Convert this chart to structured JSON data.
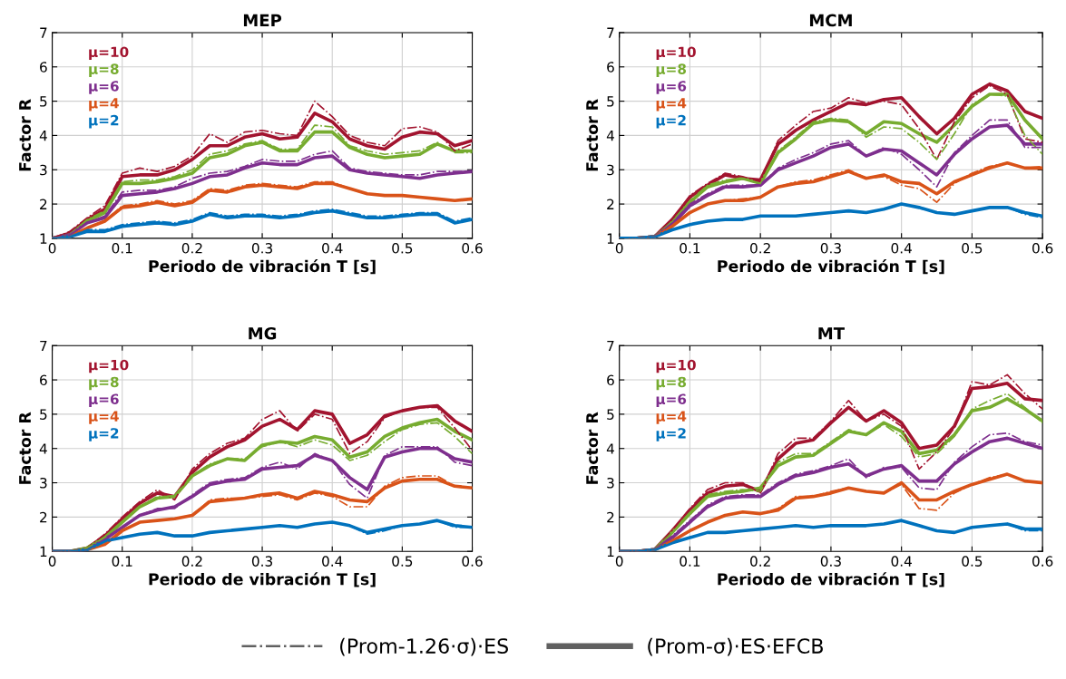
{
  "chart_data": [
    {
      "type": "line",
      "title": "MEP",
      "xlabel": "Periodo de vibración T [s]",
      "ylabel": "Factor R",
      "x": [
        0,
        0.025,
        0.05,
        0.075,
        0.1,
        0.125,
        0.15,
        0.175,
        0.2,
        0.225,
        0.25,
        0.275,
        0.3,
        0.325,
        0.35,
        0.375,
        0.4,
        0.425,
        0.45,
        0.475,
        0.5,
        0.525,
        0.55,
        0.575,
        0.6
      ],
      "xlim": [
        0,
        0.6
      ],
      "xticks": [
        0,
        0.1,
        0.2,
        0.3,
        0.4,
        0.5,
        0.6
      ],
      "ylim": [
        1,
        7
      ],
      "yticks": [
        1,
        2,
        3,
        4,
        5,
        6,
        7
      ],
      "grid": true,
      "series": [
        {
          "name": "μ=10",
          "color": "#a2142f",
          "line_style": "solid",
          "values": [
            1.0,
            1.15,
            1.55,
            1.85,
            2.8,
            2.85,
            2.85,
            3.0,
            3.3,
            3.7,
            3.7,
            3.95,
            4.05,
            3.9,
            3.95,
            4.65,
            4.4,
            3.9,
            3.7,
            3.6,
            3.95,
            4.1,
            4.05,
            3.7,
            3.85
          ]
        },
        {
          "color": "#a2142f",
          "line_style": "dashdot",
          "values": [
            1.0,
            1.2,
            1.6,
            1.95,
            2.9,
            3.05,
            2.95,
            3.1,
            3.4,
            4.05,
            3.8,
            4.1,
            4.15,
            4.05,
            4.0,
            5.0,
            4.55,
            4.0,
            3.8,
            3.7,
            4.2,
            4.25,
            4.1,
            3.55,
            3.75
          ]
        },
        {
          "name": "μ=8",
          "color": "#77ac30",
          "line_style": "solid",
          "values": [
            1.0,
            1.1,
            1.5,
            1.75,
            2.6,
            2.6,
            2.65,
            2.75,
            2.9,
            3.35,
            3.45,
            3.7,
            3.8,
            3.55,
            3.55,
            4.1,
            4.1,
            3.65,
            3.45,
            3.35,
            3.4,
            3.45,
            3.75,
            3.55,
            3.55
          ]
        },
        {
          "color": "#77ac30",
          "line_style": "dashdot",
          "values": [
            1.0,
            1.1,
            1.55,
            1.8,
            2.65,
            2.7,
            2.7,
            2.8,
            3.0,
            3.45,
            3.55,
            3.75,
            3.85,
            3.6,
            3.6,
            4.3,
            4.25,
            3.7,
            3.55,
            3.45,
            3.5,
            3.55,
            3.8,
            3.5,
            3.5
          ]
        },
        {
          "name": "μ=6",
          "color": "#7e2f8e",
          "line_style": "solid",
          "values": [
            1.0,
            1.1,
            1.45,
            1.6,
            2.25,
            2.3,
            2.35,
            2.45,
            2.6,
            2.8,
            2.85,
            3.05,
            3.2,
            3.15,
            3.15,
            3.35,
            3.4,
            3.0,
            2.9,
            2.85,
            2.8,
            2.75,
            2.85,
            2.9,
            2.95
          ]
        },
        {
          "color": "#7e2f8e",
          "line_style": "dashdot",
          "values": [
            1.0,
            1.1,
            1.45,
            1.65,
            2.35,
            2.4,
            2.4,
            2.5,
            2.75,
            2.9,
            2.95,
            3.1,
            3.3,
            3.25,
            3.25,
            3.45,
            3.55,
            3.05,
            2.95,
            2.9,
            2.85,
            2.85,
            2.95,
            2.95,
            2.95
          ]
        },
        {
          "name": "μ=4",
          "color": "#d95319",
          "line_style": "solid",
          "values": [
            1.0,
            1.05,
            1.3,
            1.5,
            1.9,
            1.95,
            2.05,
            1.95,
            2.05,
            2.4,
            2.35,
            2.5,
            2.55,
            2.5,
            2.45,
            2.6,
            2.6,
            2.45,
            2.3,
            2.25,
            2.25,
            2.2,
            2.15,
            2.1,
            2.15
          ]
        },
        {
          "color": "#d95319",
          "line_style": "dashdot",
          "values": [
            1.0,
            1.05,
            1.3,
            1.5,
            1.95,
            2.0,
            2.1,
            2.0,
            2.1,
            2.45,
            2.4,
            2.55,
            2.6,
            2.55,
            2.5,
            2.65,
            2.65,
            2.45,
            2.3,
            2.25,
            2.25,
            2.2,
            2.15,
            2.1,
            2.15
          ]
        },
        {
          "name": "μ=2",
          "color": "#0072bd",
          "line_style": "solid",
          "values": [
            1.0,
            1.05,
            1.2,
            1.2,
            1.35,
            1.4,
            1.45,
            1.4,
            1.5,
            1.7,
            1.6,
            1.65,
            1.65,
            1.6,
            1.65,
            1.75,
            1.8,
            1.7,
            1.6,
            1.6,
            1.65,
            1.7,
            1.7,
            1.45,
            1.55
          ]
        },
        {
          "color": "#0072bd",
          "line_style": "dashdot",
          "values": [
            1.0,
            1.05,
            1.25,
            1.25,
            1.4,
            1.45,
            1.5,
            1.45,
            1.55,
            1.75,
            1.65,
            1.7,
            1.7,
            1.65,
            1.7,
            1.8,
            1.85,
            1.75,
            1.65,
            1.65,
            1.7,
            1.75,
            1.75,
            1.5,
            1.6
          ]
        }
      ]
    },
    {
      "type": "line",
      "title": "MCM",
      "xlabel": "Periodo de vibración T [s]",
      "ylabel": "Factor R",
      "x": [
        0,
        0.025,
        0.05,
        0.075,
        0.1,
        0.125,
        0.15,
        0.175,
        0.2,
        0.225,
        0.25,
        0.275,
        0.3,
        0.325,
        0.35,
        0.375,
        0.4,
        0.425,
        0.45,
        0.475,
        0.5,
        0.525,
        0.55,
        0.575,
        0.6
      ],
      "xlim": [
        0,
        0.6
      ],
      "xticks": [
        0,
        0.1,
        0.2,
        0.3,
        0.4,
        0.5,
        0.6
      ],
      "ylim": [
        1,
        7
      ],
      "yticks": [
        1,
        2,
        3,
        4,
        5,
        6,
        7
      ],
      "grid": true,
      "series": [
        {
          "name": "μ=10",
          "color": "#a2142f",
          "line_style": "solid",
          "values": [
            1.0,
            1.0,
            1.05,
            1.55,
            2.2,
            2.55,
            2.85,
            2.75,
            2.7,
            3.75,
            4.15,
            4.45,
            4.7,
            4.95,
            4.9,
            5.05,
            5.1,
            4.55,
            4.05,
            4.5,
            5.2,
            5.5,
            5.3,
            4.7,
            4.5
          ]
        },
        {
          "color": "#a2142f",
          "line_style": "dashdot",
          "values": [
            1.0,
            1.0,
            1.05,
            1.55,
            2.25,
            2.6,
            2.9,
            2.8,
            2.65,
            3.85,
            4.3,
            4.7,
            4.8,
            5.1,
            4.95,
            5.0,
            4.9,
            4.2,
            3.3,
            4.4,
            5.1,
            5.45,
            5.2,
            3.9,
            3.8
          ]
        },
        {
          "name": "μ=8",
          "color": "#77ac30",
          "line_style": "solid",
          "values": [
            1.0,
            1.0,
            1.05,
            1.45,
            2.05,
            2.5,
            2.65,
            2.75,
            2.6,
            3.5,
            3.9,
            4.35,
            4.45,
            4.4,
            4.05,
            4.4,
            4.35,
            4.05,
            3.8,
            4.3,
            4.85,
            5.2,
            5.2,
            4.45,
            3.9
          ]
        },
        {
          "color": "#77ac30",
          "line_style": "dashdot",
          "values": [
            1.0,
            1.0,
            1.05,
            1.5,
            2.1,
            2.55,
            2.7,
            2.75,
            2.6,
            3.55,
            3.95,
            4.4,
            4.5,
            4.45,
            3.95,
            4.25,
            4.2,
            3.8,
            3.3,
            4.05,
            4.9,
            5.2,
            5.15,
            4.0,
            3.45
          ]
        },
        {
          "name": "μ=6",
          "color": "#7e2f8e",
          "line_style": "solid",
          "values": [
            1.0,
            1.0,
            1.05,
            1.4,
            1.95,
            2.25,
            2.5,
            2.5,
            2.55,
            3.0,
            3.2,
            3.4,
            3.65,
            3.75,
            3.4,
            3.6,
            3.55,
            3.2,
            2.85,
            3.45,
            3.9,
            4.25,
            4.3,
            3.75,
            3.75
          ]
        },
        {
          "color": "#7e2f8e",
          "line_style": "dashdot",
          "values": [
            1.0,
            1.0,
            1.05,
            1.45,
            2.0,
            2.3,
            2.55,
            2.55,
            2.55,
            3.05,
            3.3,
            3.5,
            3.75,
            3.85,
            3.4,
            3.65,
            3.45,
            3.0,
            2.5,
            3.5,
            4.0,
            4.45,
            4.45,
            3.65,
            3.65
          ]
        },
        {
          "name": "μ=4",
          "color": "#d95319",
          "line_style": "solid",
          "values": [
            1.0,
            1.0,
            1.05,
            1.35,
            1.75,
            2.0,
            2.1,
            2.1,
            2.2,
            2.5,
            2.6,
            2.65,
            2.8,
            2.95,
            2.75,
            2.85,
            2.65,
            2.6,
            2.3,
            2.65,
            2.85,
            3.05,
            3.2,
            3.05,
            3.05
          ]
        },
        {
          "color": "#d95319",
          "line_style": "dashdot",
          "values": [
            1.0,
            1.0,
            1.05,
            1.35,
            1.75,
            2.0,
            2.1,
            2.15,
            2.2,
            2.5,
            2.65,
            2.7,
            2.85,
            3.0,
            2.75,
            2.8,
            2.55,
            2.45,
            2.05,
            2.6,
            2.9,
            3.1,
            3.2,
            3.05,
            3.1
          ]
        },
        {
          "name": "μ=2",
          "color": "#0072bd",
          "line_style": "solid",
          "values": [
            1.0,
            1.0,
            1.05,
            1.25,
            1.4,
            1.5,
            1.55,
            1.55,
            1.65,
            1.65,
            1.65,
            1.7,
            1.75,
            1.8,
            1.75,
            1.85,
            2.0,
            1.9,
            1.75,
            1.7,
            1.8,
            1.9,
            1.9,
            1.75,
            1.65
          ]
        },
        {
          "color": "#0072bd",
          "line_style": "dashdot",
          "values": [
            1.0,
            1.0,
            1.05,
            1.25,
            1.4,
            1.5,
            1.55,
            1.55,
            1.65,
            1.65,
            1.65,
            1.7,
            1.75,
            1.8,
            1.75,
            1.85,
            2.0,
            1.9,
            1.75,
            1.7,
            1.8,
            1.9,
            1.9,
            1.7,
            1.6
          ]
        }
      ]
    },
    {
      "type": "line",
      "title": "MG",
      "xlabel": "Periodo de vibración T [s]",
      "ylabel": "Factor R",
      "x": [
        0,
        0.025,
        0.05,
        0.075,
        0.1,
        0.125,
        0.15,
        0.175,
        0.2,
        0.225,
        0.25,
        0.275,
        0.3,
        0.325,
        0.35,
        0.375,
        0.4,
        0.425,
        0.45,
        0.475,
        0.5,
        0.525,
        0.55,
        0.575,
        0.6
      ],
      "xlim": [
        0,
        0.6
      ],
      "xticks": [
        0,
        0.1,
        0.2,
        0.3,
        0.4,
        0.5,
        0.6
      ],
      "ylim": [
        1,
        7
      ],
      "yticks": [
        1,
        2,
        3,
        4,
        5,
        6,
        7
      ],
      "grid": true,
      "series": [
        {
          "name": "μ=10",
          "color": "#a2142f",
          "line_style": "solid",
          "values": [
            1.0,
            1.0,
            1.1,
            1.45,
            1.95,
            2.4,
            2.7,
            2.6,
            3.3,
            3.75,
            4.05,
            4.25,
            4.65,
            4.85,
            4.55,
            5.1,
            5.0,
            4.15,
            4.4,
            4.95,
            5.1,
            5.2,
            5.25,
            4.8,
            4.5
          ]
        },
        {
          "color": "#a2142f",
          "line_style": "dashdot",
          "values": [
            1.0,
            1.0,
            1.1,
            1.5,
            2.0,
            2.45,
            2.8,
            2.5,
            3.4,
            3.85,
            4.15,
            4.3,
            4.85,
            5.1,
            4.5,
            5.0,
            4.85,
            3.85,
            4.2,
            4.9,
            5.1,
            5.2,
            5.2,
            4.6,
            3.95
          ]
        },
        {
          "name": "μ=8",
          "color": "#77ac30",
          "line_style": "solid",
          "values": [
            1.0,
            1.0,
            1.1,
            1.4,
            1.85,
            2.3,
            2.55,
            2.6,
            3.2,
            3.5,
            3.7,
            3.65,
            4.1,
            4.2,
            4.15,
            4.35,
            4.25,
            3.75,
            3.9,
            4.35,
            4.6,
            4.75,
            4.85,
            4.5,
            4.25
          ]
        },
        {
          "color": "#77ac30",
          "line_style": "dashdot",
          "values": [
            1.0,
            1.0,
            1.1,
            1.4,
            1.85,
            2.3,
            2.6,
            2.6,
            3.2,
            3.55,
            3.7,
            3.7,
            4.05,
            4.2,
            4.05,
            4.25,
            4.1,
            3.65,
            3.8,
            4.2,
            4.55,
            4.7,
            4.75,
            4.35,
            3.85
          ]
        },
        {
          "name": "μ=6",
          "color": "#7e2f8e",
          "line_style": "solid",
          "values": [
            1.0,
            1.0,
            1.05,
            1.35,
            1.7,
            2.05,
            2.2,
            2.3,
            2.6,
            2.95,
            3.05,
            3.1,
            3.4,
            3.45,
            3.5,
            3.8,
            3.65,
            3.15,
            2.8,
            3.75,
            3.9,
            4.0,
            4.0,
            3.7,
            3.6
          ]
        },
        {
          "color": "#7e2f8e",
          "line_style": "dashdot",
          "values": [
            1.0,
            1.0,
            1.05,
            1.35,
            1.7,
            2.05,
            2.25,
            2.25,
            2.65,
            3.0,
            3.1,
            3.15,
            3.45,
            3.6,
            3.4,
            3.85,
            3.65,
            2.95,
            2.55,
            3.8,
            4.05,
            4.05,
            4.05,
            3.6,
            3.5
          ]
        },
        {
          "name": "μ=4",
          "color": "#d95319",
          "line_style": "solid",
          "values": [
            1.0,
            1.0,
            1.05,
            1.2,
            1.6,
            1.85,
            1.9,
            1.95,
            2.05,
            2.45,
            2.5,
            2.55,
            2.65,
            2.7,
            2.55,
            2.75,
            2.65,
            2.5,
            2.45,
            2.85,
            3.05,
            3.1,
            3.1,
            2.9,
            2.85
          ]
        },
        {
          "color": "#d95319",
          "line_style": "dashdot",
          "values": [
            1.0,
            1.0,
            1.05,
            1.2,
            1.6,
            1.85,
            1.9,
            1.95,
            2.05,
            2.5,
            2.55,
            2.55,
            2.6,
            2.65,
            2.5,
            2.7,
            2.6,
            2.3,
            2.3,
            2.9,
            3.15,
            3.2,
            3.2,
            2.9,
            2.85
          ]
        },
        {
          "name": "μ=2",
          "color": "#0072bd",
          "line_style": "solid",
          "values": [
            1.0,
            1.0,
            1.05,
            1.3,
            1.4,
            1.5,
            1.55,
            1.45,
            1.45,
            1.55,
            1.6,
            1.65,
            1.7,
            1.75,
            1.7,
            1.8,
            1.85,
            1.75,
            1.55,
            1.65,
            1.75,
            1.8,
            1.9,
            1.75,
            1.7
          ]
        },
        {
          "color": "#0072bd",
          "line_style": "dashdot",
          "values": [
            1.0,
            1.0,
            1.05,
            1.3,
            1.4,
            1.5,
            1.55,
            1.45,
            1.45,
            1.55,
            1.6,
            1.65,
            1.7,
            1.75,
            1.7,
            1.8,
            1.85,
            1.75,
            1.5,
            1.6,
            1.75,
            1.8,
            1.9,
            1.7,
            1.7
          ]
        }
      ]
    },
    {
      "type": "line",
      "title": "MT",
      "xlabel": "Periodo de vibración T [s]",
      "ylabel": "Factor R",
      "x": [
        0,
        0.025,
        0.05,
        0.075,
        0.1,
        0.125,
        0.15,
        0.175,
        0.2,
        0.225,
        0.25,
        0.275,
        0.3,
        0.325,
        0.35,
        0.375,
        0.4,
        0.425,
        0.45,
        0.475,
        0.5,
        0.525,
        0.55,
        0.575,
        0.6
      ],
      "xlim": [
        0,
        0.6
      ],
      "xticks": [
        0,
        0.1,
        0.2,
        0.3,
        0.4,
        0.5,
        0.6
      ],
      "ylim": [
        1,
        7
      ],
      "yticks": [
        1,
        2,
        3,
        4,
        5,
        6,
        7
      ],
      "grid": true,
      "annotations": [
        "(Prom-1.26·σ)·ES",
        "(Prom-σ)·ES·EFCB"
      ],
      "series": [
        {
          "name": "μ=10",
          "color": "#a2142f",
          "line_style": "solid",
          "values": [
            1.0,
            1.0,
            1.05,
            1.6,
            2.2,
            2.7,
            2.9,
            2.95,
            2.75,
            3.7,
            4.15,
            4.25,
            4.75,
            5.2,
            4.8,
            5.1,
            4.75,
            4.0,
            4.1,
            4.65,
            5.75,
            5.8,
            5.9,
            5.45,
            5.4
          ]
        },
        {
          "color": "#a2142f",
          "line_style": "dashdot",
          "values": [
            1.0,
            1.0,
            1.05,
            1.6,
            2.25,
            2.8,
            3.0,
            3.0,
            2.7,
            3.85,
            4.3,
            4.3,
            4.8,
            5.4,
            4.8,
            5.0,
            4.65,
            3.4,
            3.9,
            4.6,
            5.95,
            5.85,
            6.15,
            5.6,
            5.15
          ]
        },
        {
          "name": "μ=8",
          "color": "#77ac30",
          "line_style": "solid",
          "values": [
            1.0,
            1.0,
            1.05,
            1.55,
            2.1,
            2.6,
            2.7,
            2.75,
            2.85,
            3.5,
            3.75,
            3.8,
            4.15,
            4.5,
            4.4,
            4.75,
            4.5,
            3.85,
            3.95,
            4.4,
            5.1,
            5.2,
            5.45,
            5.15,
            4.8
          ]
        },
        {
          "color": "#77ac30",
          "line_style": "dashdot",
          "values": [
            1.0,
            1.0,
            1.05,
            1.55,
            2.1,
            2.65,
            2.75,
            2.8,
            2.75,
            3.6,
            3.85,
            3.85,
            4.2,
            4.55,
            4.4,
            4.7,
            4.35,
            3.75,
            3.85,
            4.35,
            5.15,
            5.4,
            5.6,
            5.2,
            4.75
          ]
        },
        {
          "name": "μ=6",
          "color": "#7e2f8e",
          "line_style": "solid",
          "values": [
            1.0,
            1.0,
            1.05,
            1.4,
            1.85,
            2.3,
            2.55,
            2.6,
            2.6,
            2.95,
            3.2,
            3.3,
            3.45,
            3.55,
            3.2,
            3.4,
            3.5,
            3.05,
            3.05,
            3.55,
            3.9,
            4.2,
            4.3,
            4.15,
            4.0
          ]
        },
        {
          "color": "#7e2f8e",
          "line_style": "dashdot",
          "values": [
            1.0,
            1.0,
            1.05,
            1.45,
            1.9,
            2.35,
            2.6,
            2.65,
            2.65,
            3.0,
            3.25,
            3.35,
            3.5,
            3.7,
            3.15,
            3.45,
            3.45,
            2.85,
            2.8,
            3.6,
            4.05,
            4.4,
            4.45,
            4.2,
            4.1
          ]
        },
        {
          "name": "μ=4",
          "color": "#d95319",
          "line_style": "solid",
          "values": [
            1.0,
            1.0,
            1.05,
            1.3,
            1.6,
            1.85,
            2.05,
            2.15,
            2.1,
            2.2,
            2.55,
            2.6,
            2.7,
            2.85,
            2.75,
            2.7,
            3.0,
            2.5,
            2.5,
            2.75,
            2.95,
            3.1,
            3.25,
            3.05,
            3.0
          ]
        },
        {
          "color": "#d95319",
          "line_style": "dashdot",
          "values": [
            1.0,
            1.0,
            1.05,
            1.3,
            1.6,
            1.85,
            2.05,
            2.15,
            2.1,
            2.25,
            2.6,
            2.6,
            2.75,
            2.85,
            2.75,
            2.7,
            2.95,
            2.25,
            2.2,
            2.7,
            2.95,
            3.15,
            3.25,
            3.05,
            3.0
          ]
        },
        {
          "name": "μ=2",
          "color": "#0072bd",
          "line_style": "solid",
          "values": [
            1.0,
            1.0,
            1.05,
            1.25,
            1.4,
            1.55,
            1.55,
            1.6,
            1.65,
            1.7,
            1.75,
            1.7,
            1.75,
            1.75,
            1.75,
            1.8,
            1.9,
            1.75,
            1.6,
            1.55,
            1.7,
            1.75,
            1.8,
            1.65,
            1.65
          ]
        },
        {
          "color": "#0072bd",
          "line_style": "dashdot",
          "values": [
            1.0,
            1.0,
            1.05,
            1.25,
            1.4,
            1.55,
            1.55,
            1.6,
            1.65,
            1.7,
            1.75,
            1.7,
            1.75,
            1.75,
            1.75,
            1.8,
            1.9,
            1.75,
            1.6,
            1.55,
            1.7,
            1.75,
            1.8,
            1.6,
            1.6
          ]
        }
      ]
    }
  ]
}
